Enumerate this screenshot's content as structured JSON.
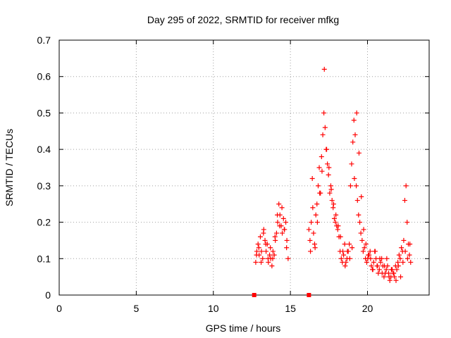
{
  "chart_data": {
    "type": "scatter",
    "title": "Day 295 of 2022, SRMTID for receiver mfkg",
    "xlabel": "GPS time / hours",
    "ylabel": "SRMTID / TECUs",
    "xlim": [
      0,
      24
    ],
    "ylim": [
      0,
      0.7
    ],
    "xticks": [
      0,
      5,
      10,
      15,
      20
    ],
    "yticks": [
      0,
      0.1,
      0.2,
      0.3,
      0.4,
      0.5,
      0.6,
      0.7
    ],
    "xtick_labels": [
      "0",
      "5",
      "10",
      "15",
      "20"
    ],
    "ytick_labels": [
      "0",
      "0.1",
      "0.2",
      "0.3",
      "0.4",
      "0.5",
      "0.6",
      "0.7"
    ],
    "grid": true,
    "marker": "+",
    "color": "#ff0000",
    "series": [
      {
        "name": "SRMTID",
        "x": [
          12.75,
          12.82,
          12.9,
          12.97,
          13.05,
          13.12,
          13.2,
          13.27,
          13.35,
          13.42,
          13.5,
          13.57,
          13.65,
          13.72,
          13.8,
          13.87,
          13.95,
          14.02,
          14.1,
          14.17,
          14.25,
          14.32,
          14.4,
          14.47,
          14.55,
          14.62,
          14.7,
          14.77,
          14.85,
          16.2,
          16.27,
          16.35,
          16.42,
          16.5,
          16.57,
          16.65,
          16.72,
          16.8,
          16.87,
          16.95,
          17.02,
          17.1,
          17.17,
          17.25,
          17.32,
          17.4,
          17.47,
          17.55,
          17.62,
          17.7,
          17.77,
          17.85,
          17.92,
          18.0,
          18.07,
          18.15,
          18.22,
          18.3,
          18.37,
          18.45,
          18.52,
          18.6,
          18.67,
          18.75,
          18.82,
          18.9,
          18.97,
          19.05,
          19.12,
          19.2,
          19.27,
          19.35,
          19.42,
          19.5,
          19.57,
          19.65,
          19.72,
          19.8,
          19.87,
          19.95,
          20.02,
          20.1,
          20.17,
          20.25,
          20.32,
          20.4,
          20.47,
          20.55,
          20.62,
          20.7,
          20.77,
          20.85,
          20.92,
          21.0,
          21.07,
          21.15,
          21.22,
          21.3,
          21.37,
          21.45,
          21.52,
          21.6,
          21.67,
          21.75,
          21.82,
          21.9,
          21.97,
          22.05,
          22.12,
          22.2,
          22.27,
          22.35,
          22.42,
          22.5,
          22.57,
          22.65,
          22.72,
          22.8,
          12.8,
          12.95,
          13.1,
          13.25,
          13.4,
          13.55,
          13.7,
          13.85,
          14.0,
          14.15,
          14.3,
          14.45,
          14.6,
          14.75,
          16.3,
          16.45,
          16.6,
          16.75,
          16.9,
          17.05,
          17.2,
          17.35,
          17.5,
          17.65,
          17.8,
          17.95,
          18.1,
          18.25,
          18.4,
          18.55,
          18.7,
          18.85,
          19.0,
          19.15,
          19.3,
          19.45,
          19.6,
          19.75,
          19.9,
          20.05,
          20.2,
          20.35,
          20.5,
          20.65,
          20.8,
          20.95,
          21.1,
          21.25,
          21.4,
          21.55,
          21.7,
          21.85,
          22.0,
          22.15,
          22.3,
          22.45,
          22.6,
          22.75
        ],
        "y": [
          0.09,
          0.12,
          0.14,
          0.11,
          0.16,
          0.12,
          0.1,
          0.18,
          0.15,
          0.12,
          0.14,
          0.09,
          0.11,
          0.1,
          0.08,
          0.12,
          0.11,
          0.15,
          0.17,
          0.2,
          0.25,
          0.22,
          0.19,
          0.17,
          0.21,
          0.18,
          0.2,
          0.15,
          0.1,
          0.18,
          0.15,
          0.2,
          0.32,
          0.17,
          0.14,
          0.22,
          0.25,
          0.3,
          0.35,
          0.28,
          0.38,
          0.44,
          0.5,
          0.46,
          0.4,
          0.36,
          0.33,
          0.28,
          0.3,
          0.26,
          0.24,
          0.21,
          0.2,
          0.19,
          0.18,
          0.16,
          0.12,
          0.1,
          0.09,
          0.11,
          0.14,
          0.09,
          0.1,
          0.12,
          0.14,
          0.3,
          0.36,
          0.42,
          0.48,
          0.44,
          0.3,
          0.26,
          0.22,
          0.2,
          0.17,
          0.15,
          0.12,
          0.13,
          0.1,
          0.09,
          0.1,
          0.11,
          0.12,
          0.08,
          0.07,
          0.09,
          0.12,
          0.1,
          0.08,
          0.06,
          0.07,
          0.09,
          0.1,
          0.08,
          0.05,
          0.06,
          0.07,
          0.08,
          0.06,
          0.04,
          0.05,
          0.07,
          0.06,
          0.05,
          0.08,
          0.07,
          0.09,
          0.11,
          0.1,
          0.13,
          0.12,
          0.15,
          0.26,
          0.3,
          0.2,
          0.14,
          0.11,
          0.09,
          0.11,
          0.13,
          0.09,
          0.17,
          0.14,
          0.1,
          0.13,
          0.1,
          0.16,
          0.22,
          0.19,
          0.24,
          0.18,
          0.13,
          0.12,
          0.24,
          0.13,
          0.2,
          0.28,
          0.34,
          0.62,
          0.4,
          0.35,
          0.29,
          0.25,
          0.22,
          0.19,
          0.16,
          0.12,
          0.08,
          0.12,
          0.1,
          0.13,
          0.32,
          0.5,
          0.39,
          0.27,
          0.18,
          0.14,
          0.11,
          0.1,
          0.07,
          0.12,
          0.08,
          0.1,
          0.06,
          0.08,
          0.1,
          0.05,
          0.07,
          0.06,
          0.04,
          0.08,
          0.05,
          0.09,
          0.12,
          0.1,
          0.14
        ],
        "markers": [
          {
            "x": 12.65,
            "y": 0,
            "label": "data gap marker"
          },
          {
            "x": 16.2,
            "y": 0,
            "label": "data gap marker"
          }
        ]
      }
    ]
  }
}
